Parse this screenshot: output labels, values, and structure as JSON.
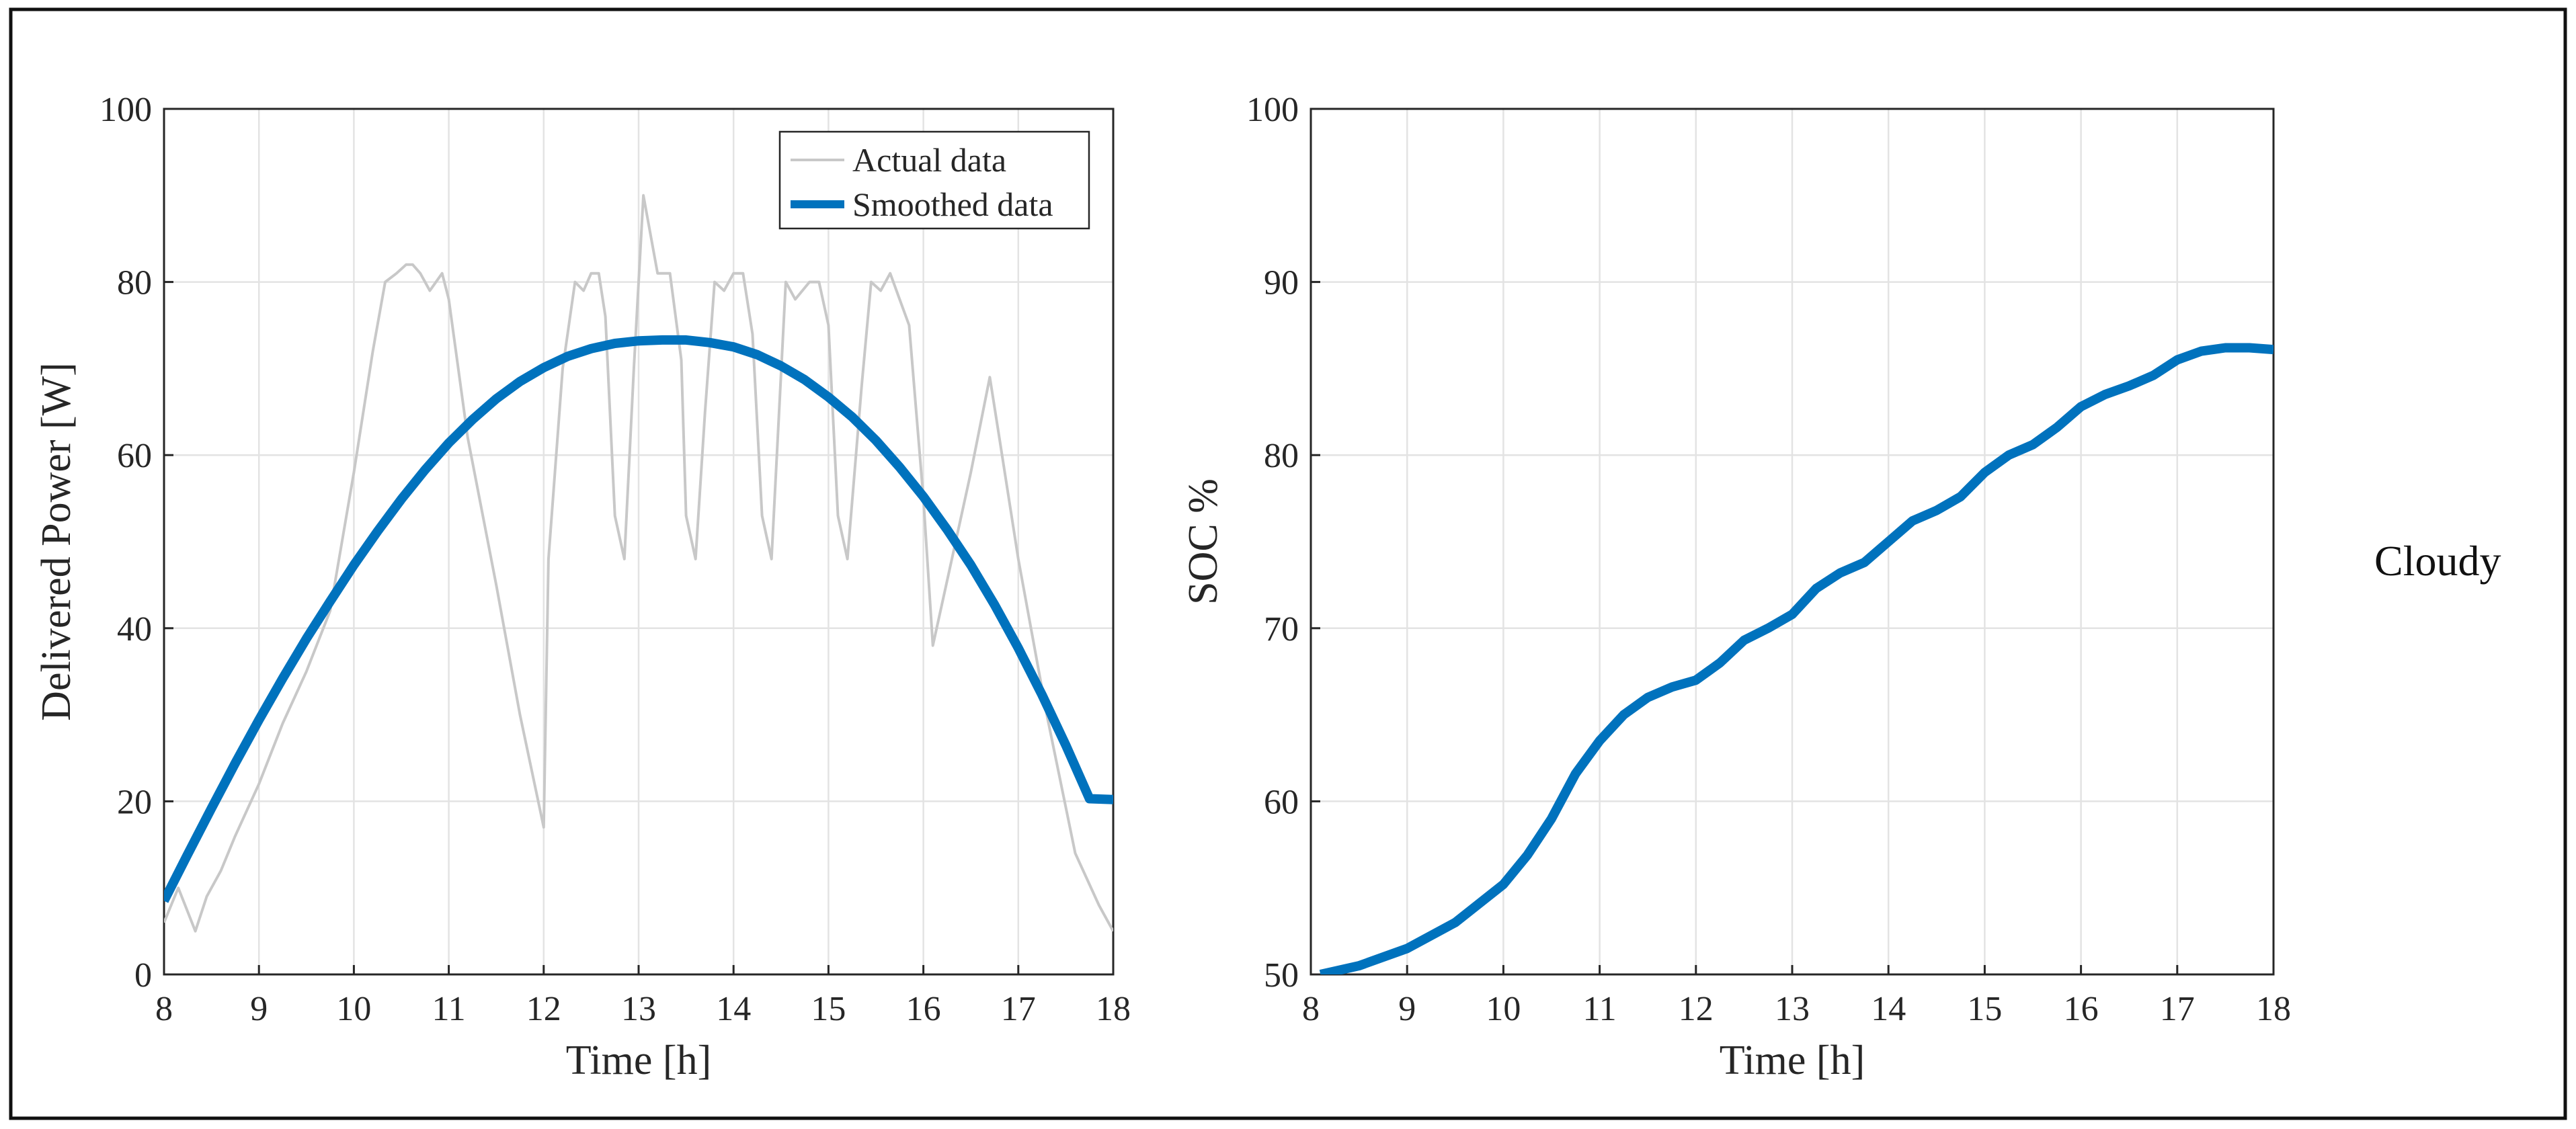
{
  "chart_data": [
    {
      "type": "line",
      "xlabel": "Time [h]",
      "ylabel": "Delivered Power [W]",
      "xlim": [
        8,
        18
      ],
      "ylim": [
        0,
        100
      ],
      "xticks": [
        8,
        9,
        10,
        11,
        12,
        13,
        14,
        15,
        16,
        17,
        18
      ],
      "yticks": [
        0,
        20,
        40,
        60,
        80,
        100
      ],
      "grid": true,
      "legend_position": "top-right",
      "series": [
        {
          "name": "Actual data",
          "color": "#c8c8c8",
          "x": [
            8.0,
            8.15,
            8.33,
            8.45,
            8.6,
            8.75,
            9.0,
            9.25,
            9.5,
            9.75,
            10.0,
            10.2,
            10.33,
            10.45,
            10.55,
            10.62,
            10.7,
            10.8,
            10.93,
            11.0,
            11.2,
            11.5,
            11.75,
            12.0,
            12.05,
            12.2,
            12.33,
            12.42,
            12.5,
            12.58,
            12.65,
            12.75,
            12.85,
            12.95,
            13.05,
            13.2,
            13.33,
            13.45,
            13.5,
            13.6,
            13.7,
            13.8,
            13.9,
            14.0,
            14.1,
            14.2,
            14.3,
            14.4,
            14.55,
            14.65,
            14.8,
            14.9,
            15.0,
            15.1,
            15.2,
            15.35,
            15.45,
            15.55,
            15.65,
            15.75,
            15.85,
            16.0,
            16.1,
            16.3,
            16.5,
            16.7,
            16.8,
            17.0,
            17.3,
            17.6,
            17.85,
            18.0
          ],
          "values": [
            6,
            10,
            5,
            9,
            12,
            16,
            22,
            29,
            35,
            42,
            58,
            72,
            80,
            81,
            82,
            82,
            81,
            79,
            81,
            78,
            62,
            45,
            30,
            17,
            48,
            70,
            80,
            79,
            81,
            81,
            76,
            53,
            48,
            70,
            90,
            81,
            81,
            71,
            53,
            48,
            65,
            80,
            79,
            81,
            81,
            74,
            53,
            48,
            80,
            78,
            80,
            80,
            75,
            53,
            48,
            68,
            80,
            79,
            81,
            78,
            75,
            55,
            38,
            48,
            58,
            69,
            62,
            48,
            30,
            14,
            8,
            5
          ]
        },
        {
          "name": "Smoothed data",
          "color": "#0072bd",
          "x": [
            8.0,
            8.25,
            8.5,
            8.75,
            9.0,
            9.25,
            9.5,
            9.75,
            10.0,
            10.25,
            10.5,
            10.75,
            11.0,
            11.25,
            11.5,
            11.75,
            12.0,
            12.25,
            12.5,
            12.75,
            13.0,
            13.25,
            13.5,
            13.75,
            14.0,
            14.25,
            14.5,
            14.75,
            15.0,
            15.25,
            15.5,
            15.75,
            16.0,
            16.25,
            16.5,
            16.75,
            17.0,
            17.25,
            17.5,
            17.75,
            18.0
          ],
          "values": [
            8.5,
            13.9,
            19.2,
            24.4,
            29.4,
            34.2,
            38.8,
            43.1,
            47.3,
            51.2,
            54.9,
            58.3,
            61.4,
            64.1,
            66.5,
            68.5,
            70.1,
            71.4,
            72.3,
            72.9,
            73.2,
            73.3,
            73.3,
            73.0,
            72.5,
            71.6,
            70.3,
            68.7,
            66.7,
            64.4,
            61.7,
            58.6,
            55.2,
            51.4,
            47.3,
            42.7,
            37.7,
            32.3,
            26.5,
            20.3,
            20.2
          ]
        }
      ]
    },
    {
      "type": "line",
      "xlabel": "Time [h]",
      "ylabel": "SOC %",
      "xlim": [
        8,
        18
      ],
      "ylim": [
        50,
        100
      ],
      "xticks": [
        8,
        9,
        10,
        11,
        12,
        13,
        14,
        15,
        16,
        17,
        18
      ],
      "yticks": [
        50,
        60,
        70,
        80,
        90,
        100
      ],
      "grid": true,
      "series": [
        {
          "name": "SOC",
          "color": "#0072bd",
          "x": [
            8.1,
            8.5,
            9.0,
            9.5,
            10.0,
            10.25,
            10.5,
            10.75,
            11.0,
            11.25,
            11.5,
            11.75,
            12.0,
            12.25,
            12.5,
            12.75,
            13.0,
            13.25,
            13.5,
            13.75,
            14.0,
            14.25,
            14.5,
            14.75,
            15.0,
            15.25,
            15.5,
            15.75,
            16.0,
            16.25,
            16.5,
            16.75,
            17.0,
            17.25,
            17.5,
            17.75,
            18.0
          ],
          "values": [
            50.0,
            50.5,
            51.5,
            53.0,
            55.2,
            56.9,
            59.0,
            61.6,
            63.5,
            65.0,
            66.0,
            66.6,
            67.0,
            68.0,
            69.3,
            70.0,
            70.8,
            72.3,
            73.2,
            73.8,
            75.0,
            76.2,
            76.8,
            77.6,
            79.0,
            80.0,
            80.6,
            81.6,
            82.8,
            83.5,
            84.0,
            84.6,
            85.5,
            86.0,
            86.2,
            86.2,
            86.1
          ]
        }
      ]
    }
  ],
  "side_label": "Cloudy"
}
